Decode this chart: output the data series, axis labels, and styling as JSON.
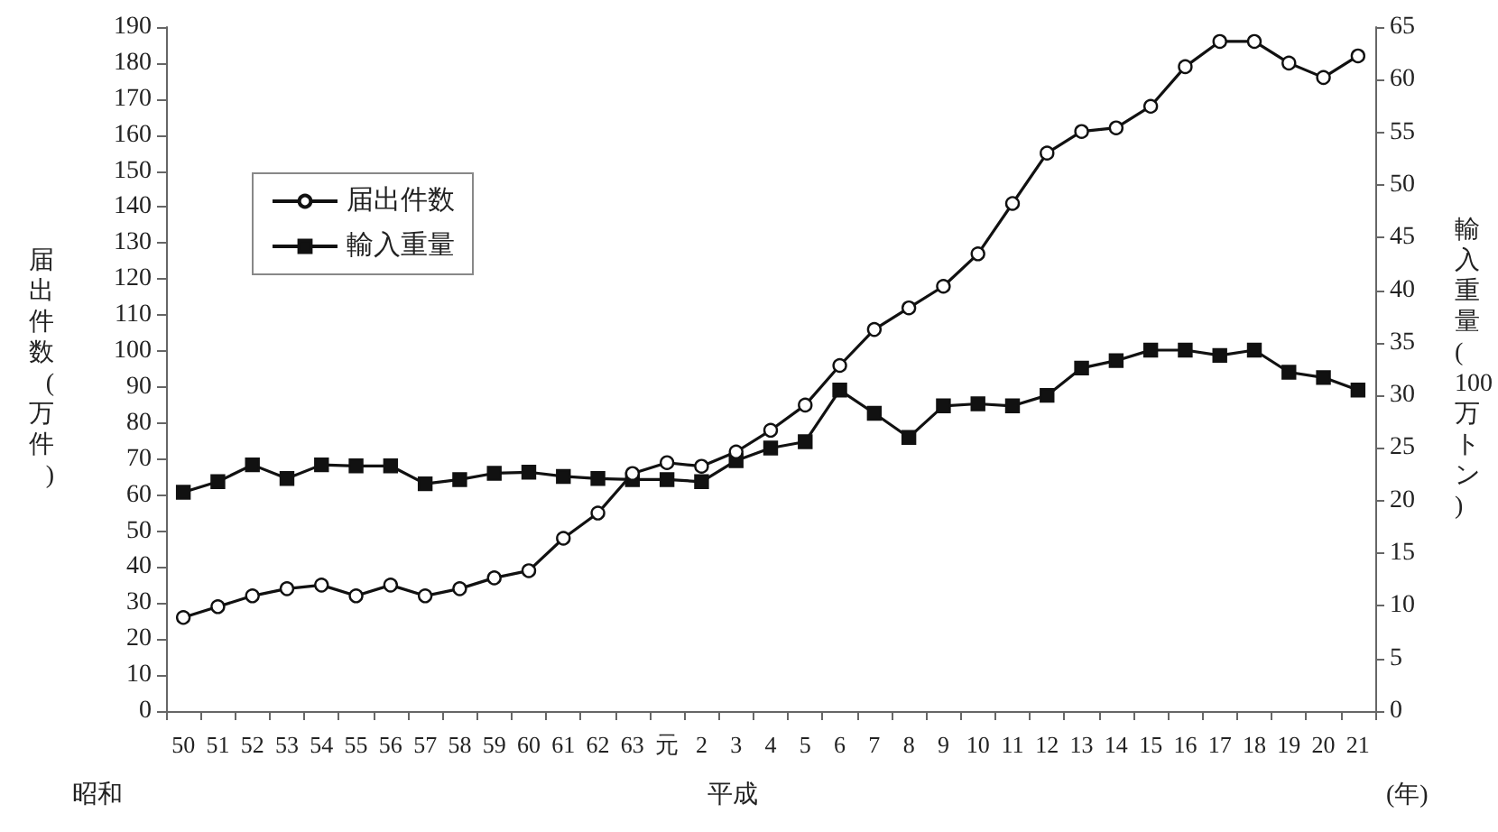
{
  "chart_data": {
    "type": "line",
    "ylabel": "届出件数(万件)",
    "y2label": "輸入重量(100万トン)",
    "categories": [
      "50",
      "51",
      "52",
      "53",
      "54",
      "55",
      "56",
      "57",
      "58",
      "59",
      "60",
      "61",
      "62",
      "63",
      "元",
      "2",
      "3",
      "4",
      "5",
      "6",
      "7",
      "8",
      "9",
      "10",
      "11",
      "12",
      "13",
      "14",
      "15",
      "16",
      "17",
      "18",
      "19",
      "20",
      "21"
    ],
    "series": [
      {
        "name": "届出件数",
        "color": "#111111",
        "marker": "circle",
        "values": [
          26,
          29,
          32,
          34,
          35,
          32,
          35,
          32,
          34,
          37,
          39,
          48,
          55,
          66,
          69,
          68,
          72,
          78,
          85,
          96,
          106,
          112,
          118,
          127,
          141,
          155,
          161,
          162,
          168,
          179,
          186,
          186,
          180,
          176,
          182
        ]
      },
      {
        "name": "輸入重量",
        "color": "#111111",
        "marker": "square",
        "axis": "y2",
        "values": [
          20.8,
          21.8,
          23.4,
          22.1,
          23.4,
          23.3,
          23.3,
          21.6,
          22.0,
          22.6,
          22.7,
          22.3,
          22.1,
          22.0,
          22.0,
          21.8,
          23.8,
          25.0,
          25.6,
          30.5,
          28.3,
          26.0,
          29.0,
          29.2,
          29.0,
          30.0,
          32.6,
          33.3,
          34.3,
          34.3,
          33.8,
          34.3,
          32.2,
          31.7,
          30.5
        ]
      }
    ],
    "ylim": [
      0,
      190
    ],
    "yticks": [
      0,
      10,
      20,
      30,
      40,
      50,
      60,
      70,
      80,
      90,
      100,
      110,
      120,
      130,
      140,
      150,
      160,
      170,
      180,
      190
    ],
    "y2lim": [
      0,
      65
    ],
    "y2ticks": [
      0,
      5,
      10,
      15,
      20,
      25,
      30,
      35,
      40,
      45,
      50,
      55,
      60,
      65
    ],
    "annotations": [
      "昭和",
      "平成",
      "(年)"
    ],
    "legend": "top left",
    "grid": false,
    "line_style": "solid"
  }
}
